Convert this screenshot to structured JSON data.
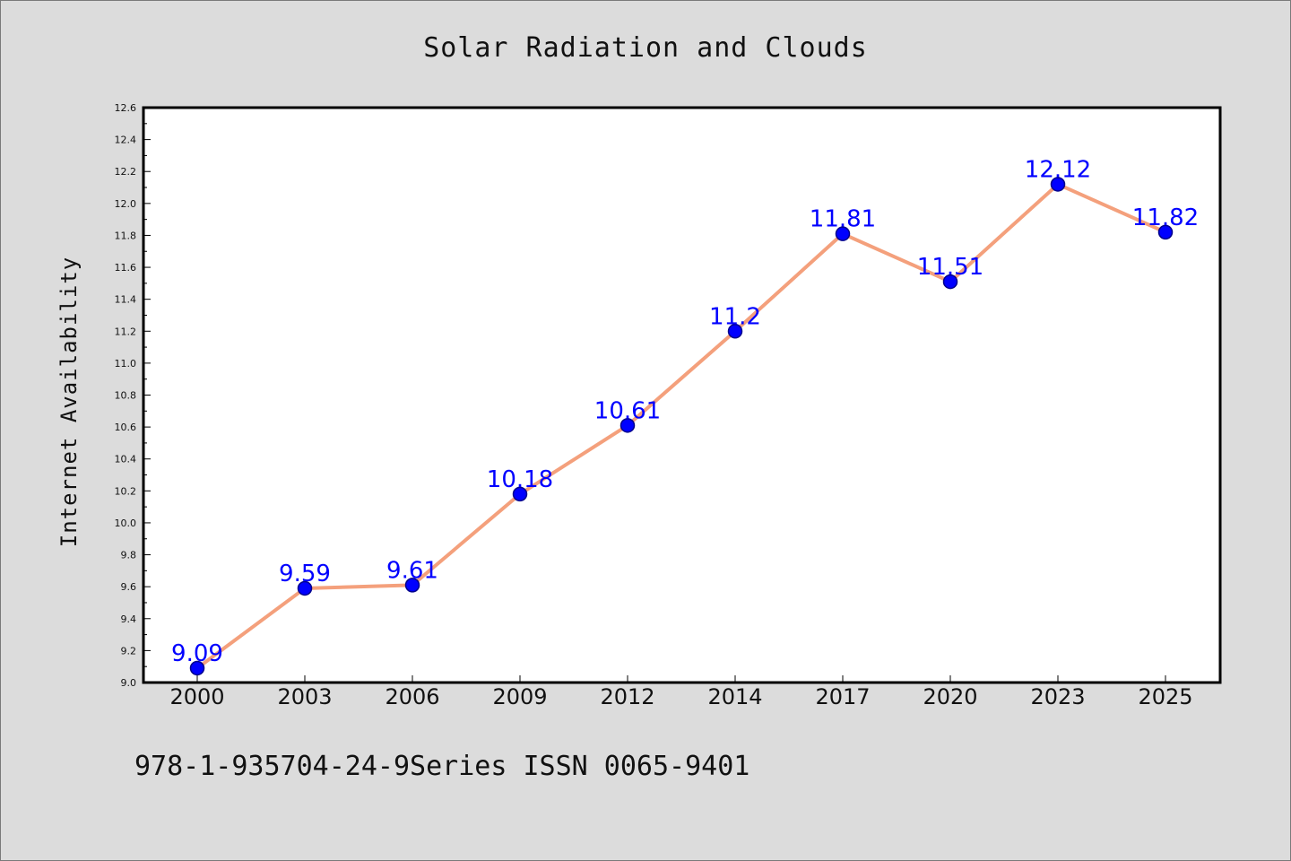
{
  "footnote": "978-1-935704-24-9Series ISSN 0065-9401",
  "colors": {
    "background": "#dcdcdc",
    "plot_background": "#ffffff",
    "line": "#f4a07c",
    "marker_fill": "#0000ff",
    "marker_edge": "#00008b",
    "data_label": "#0000ff"
  },
  "chart_data": {
    "type": "line",
    "title": "Solar Radiation and Clouds",
    "xlabel": "",
    "ylabel": "Internet Availability",
    "categories": [
      "2000",
      "2003",
      "2006",
      "2009",
      "2012",
      "2014",
      "2017",
      "2020",
      "2023",
      "2025"
    ],
    "series": [
      {
        "values": [
          9.09,
          9.59,
          9.61,
          10.18,
          10.61,
          11.2,
          11.81,
          11.51,
          12.12,
          11.82
        ],
        "labels": [
          "9.09",
          "9.59",
          "9.61",
          "10.18",
          "10.61",
          "11.2",
          "11.81",
          "11.51",
          "12.12",
          "11.82"
        ]
      }
    ],
    "ylim": [
      9.0,
      12.6
    ],
    "yticks": [
      "9.0",
      "9.2",
      "9.4",
      "9.6",
      "9.8",
      "10.0",
      "10.2",
      "10.4",
      "10.6",
      "10.8",
      "11.0",
      "11.2",
      "11.4",
      "11.6",
      "11.8",
      "12.0",
      "12.2",
      "12.4",
      "12.6"
    ],
    "grid": false,
    "legend": "none"
  }
}
